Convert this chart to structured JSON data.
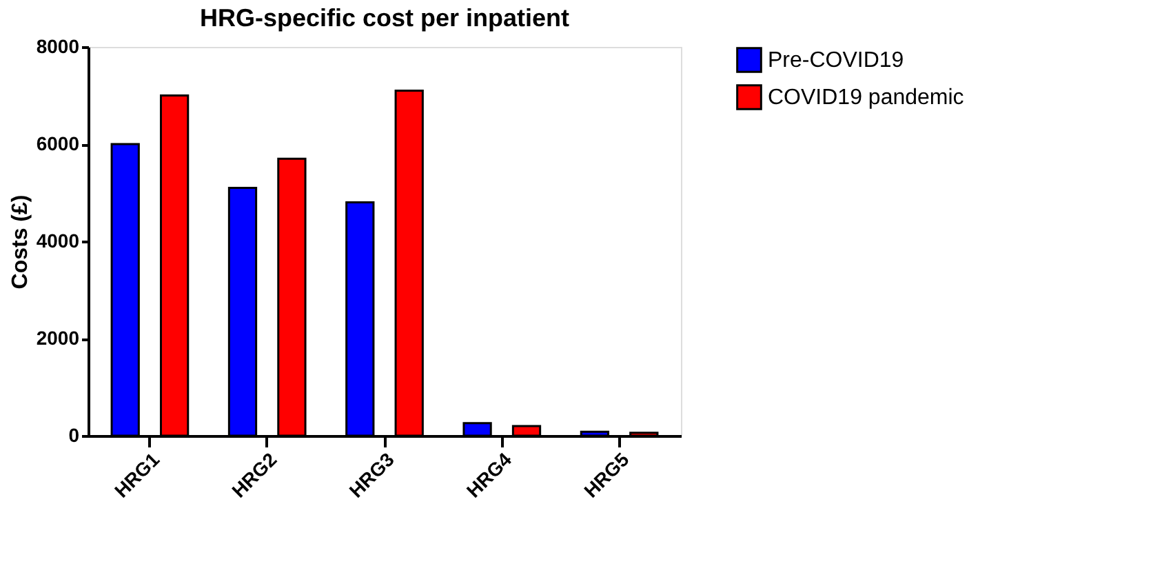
{
  "chart_data": {
    "type": "bar",
    "title": "HRG-specific cost per inpatient",
    "ylabel": "Costs (£)",
    "categories": [
      "HRG1",
      "HRG2",
      "HRG3",
      "HRG4",
      "HRG5"
    ],
    "series": [
      {
        "name": "Pre-COVID19",
        "color": "#0000ff",
        "values": [
          6000,
          5100,
          4800,
          260,
          80
        ]
      },
      {
        "name": "COVID19 pandemic",
        "color": "#ff0000",
        "values": [
          7000,
          5700,
          7100,
          200,
          60
        ]
      }
    ],
    "ylim": [
      0,
      8000
    ],
    "yticks": [
      0,
      2000,
      4000,
      6000,
      8000
    ],
    "grid": false,
    "legend": "top right"
  }
}
